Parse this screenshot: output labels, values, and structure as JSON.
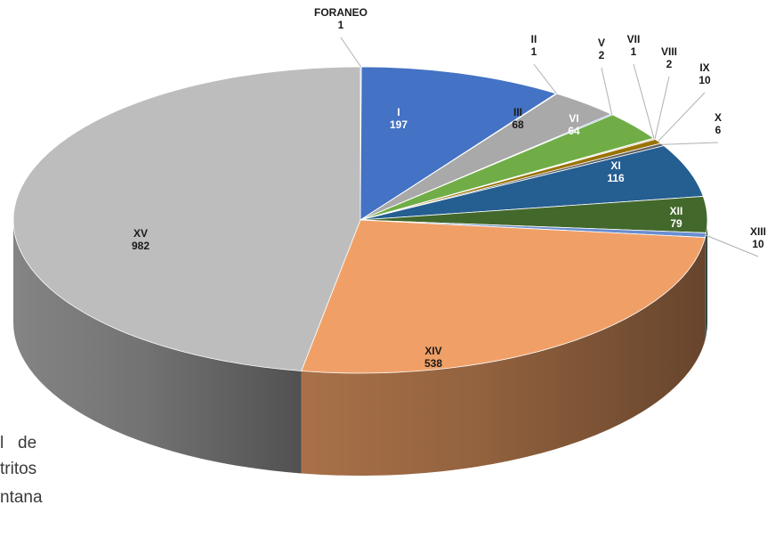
{
  "chart_data": {
    "type": "pie",
    "style": "3d",
    "start": "top, clockwise",
    "slices": [
      {
        "name": "FORANEO",
        "value": 1,
        "label_name": "FORANEO",
        "label_value": "1",
        "color": "#3a6fc4",
        "label_pos": "outside"
      },
      {
        "name": "I",
        "value": 197,
        "label_name": "I",
        "label_value": "197",
        "color": "#4472c4",
        "label_pos": "inside"
      },
      {
        "name": "II",
        "value": 1,
        "label_name": "II",
        "label_value": "1",
        "color": "#a5a5a5",
        "label_pos": "outside"
      },
      {
        "name": "III",
        "value": 68,
        "label_name": "III",
        "label_value": "68",
        "color": "#a9a9a9",
        "label_pos": "inside"
      },
      {
        "name": "V",
        "value": 2,
        "label_name": "V",
        "label_value": "2",
        "color": "#5b9bd5",
        "label_pos": "outside"
      },
      {
        "name": "VI",
        "value": 64,
        "label_name": "VI",
        "label_value": "64",
        "color": "#70ad47",
        "label_pos": "inside"
      },
      {
        "name": "VII",
        "value": 1,
        "label_name": "VII",
        "label_value": "1",
        "color": "#264478",
        "label_pos": "outside"
      },
      {
        "name": "VIII",
        "value": 2,
        "label_name": "VIII",
        "label_value": "2",
        "color": "#9e480e",
        "label_pos": "outside"
      },
      {
        "name": "IX",
        "value": 10,
        "label_name": "IX",
        "label_value": "10",
        "color": "#997300",
        "label_pos": "outside"
      },
      {
        "name": "X",
        "value": 6,
        "label_name": "X",
        "label_value": "6",
        "color": "#636363",
        "label_pos": "outside"
      },
      {
        "name": "XI",
        "value": 116,
        "label_name": "XI",
        "label_value": "116",
        "color": "#255e91",
        "label_pos": "inside"
      },
      {
        "name": "XII",
        "value": 79,
        "label_name": "XII",
        "label_value": "79",
        "color": "#43682b",
        "label_pos": "inside"
      },
      {
        "name": "XIII",
        "value": 10,
        "label_name": "XIII",
        "label_value": "10",
        "color": "#698ed0",
        "label_pos": "outside"
      },
      {
        "name": "XIV",
        "value": 538,
        "label_name": "XIV",
        "label_value": "538",
        "color": "#f0a067",
        "label_pos": "inside"
      },
      {
        "name": "XV",
        "value": 982,
        "label_name": "XV",
        "label_value": "982",
        "color": "#bdbdbd",
        "label_pos": "inside"
      }
    ]
  },
  "side_text": {
    "line1": "l   de",
    "line2": "tritos",
    "line3": "ntana"
  }
}
